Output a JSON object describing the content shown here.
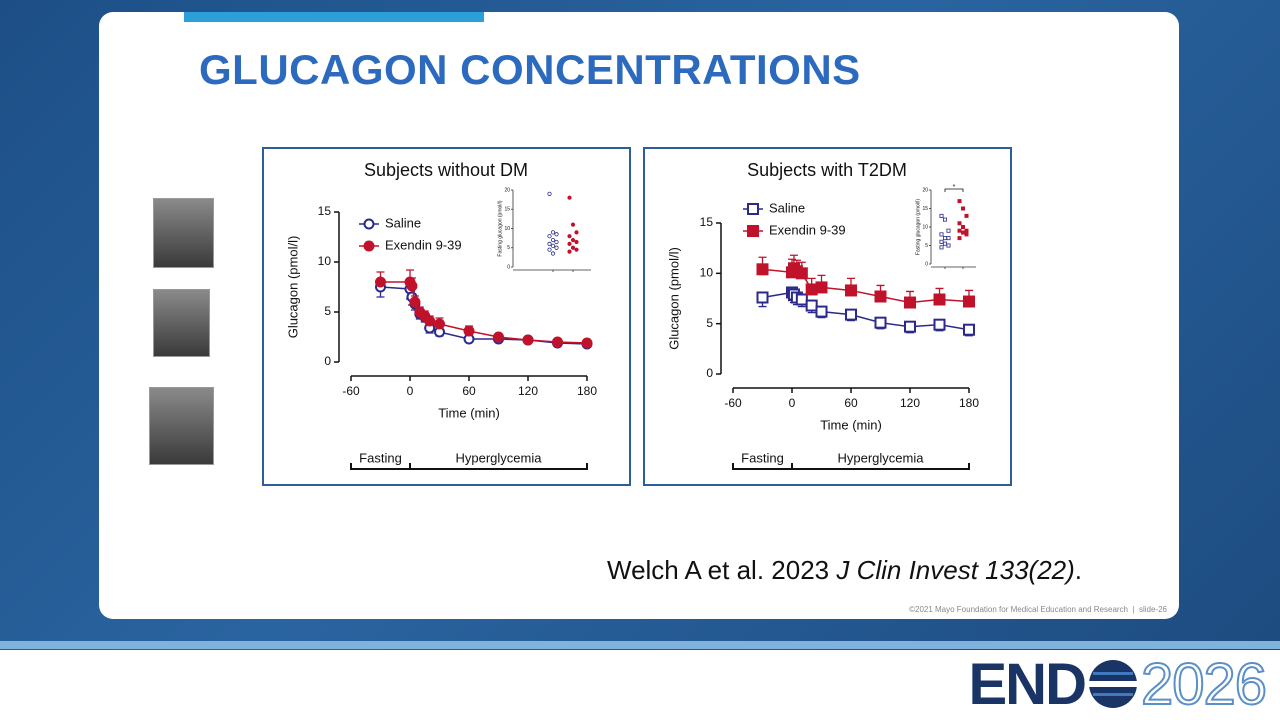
{
  "slide": {
    "title": "GLUCAGON CONCENTRATIONS",
    "citation": {
      "authors": "Welch A et al. 2023 ",
      "journal": "J Clin Invest 133(22)",
      "end": "."
    },
    "copyright": "©2021 Mayo Foundation for Medical Education and Research",
    "slide_number": "slide-26",
    "logo": {
      "name": "END",
      "year": "2026"
    }
  },
  "chart_data": [
    {
      "type": "line",
      "title": "Subjects without DM",
      "xlabel": "Time (min)",
      "ylabel": "Glucagon (pmol/l)",
      "marker": "circle",
      "x": [
        -30,
        0,
        2,
        5,
        10,
        15,
        20,
        30,
        60,
        90,
        120,
        150,
        180
      ],
      "series": [
        {
          "name": "Saline",
          "color": "#2b2a8c",
          "filled": false,
          "error_side": "down",
          "values": [
            7.5,
            7.3,
            6.5,
            5.8,
            4.8,
            4.5,
            3.4,
            3.0,
            2.3,
            2.3,
            2.2,
            1.9,
            1.8
          ],
          "errors": [
            1.0,
            1.0,
            0.8,
            0.6,
            0.5,
            0.5,
            0.5,
            0.4,
            0.3,
            0.3,
            0.3,
            0.2,
            0.2
          ]
        },
        {
          "name": "Exendin 9-39",
          "color": "#c0132b",
          "filled": true,
          "error_side": "up",
          "values": [
            8.0,
            8.0,
            7.6,
            6.0,
            5.0,
            4.6,
            4.1,
            3.8,
            3.1,
            2.5,
            2.2,
            2.0,
            1.9
          ],
          "errors": [
            1.0,
            1.2,
            0.8,
            0.6,
            0.5,
            0.5,
            0.5,
            0.6,
            0.5,
            0.3,
            0.3,
            0.2,
            0.2
          ]
        }
      ],
      "xlim": [
        -60,
        180
      ],
      "xticks": [
        -60,
        0,
        60,
        120,
        180
      ],
      "ylim": [
        0,
        15
      ],
      "yticks": [
        0,
        5,
        10,
        15
      ],
      "phases": [
        {
          "label": "Fasting",
          "start": -60,
          "end": 0
        },
        {
          "label": "Hyperglycemia",
          "start": 0,
          "end": 180
        }
      ],
      "inset": {
        "type": "scatter",
        "ylabel": "Fasting glucagon (pmol/l)",
        "ylim": [
          0,
          20
        ],
        "yticks": [
          0,
          5,
          10,
          15,
          20
        ],
        "series": [
          {
            "color": "#2b2a8c",
            "values": [
              19,
              9,
              8.5,
              8,
              7,
              6.5,
              6,
              5.5,
              5,
              4.5,
              3.5
            ]
          },
          {
            "color": "#c0132b",
            "values": [
              18,
              11,
              9,
              8,
              7,
              6.5,
              6,
              5,
              4.5,
              4
            ]
          }
        ]
      }
    },
    {
      "type": "line",
      "title": "Subjects with T2DM",
      "xlabel": "Time (min)",
      "ylabel": "Glucagon (pmol/l)",
      "marker": "square",
      "x": [
        -30,
        0,
        2,
        5,
        10,
        20,
        30,
        60,
        90,
        120,
        150,
        180
      ],
      "series": [
        {
          "name": "Saline",
          "color": "#2b2a8c",
          "filled": false,
          "error_side": "down",
          "values": [
            7.6,
            8.1,
            7.9,
            7.6,
            7.4,
            6.8,
            6.2,
            5.9,
            5.1,
            4.7,
            4.9,
            4.4
          ],
          "errors": [
            0.9,
            0.8,
            0.8,
            0.7,
            0.7,
            0.7,
            0.6,
            0.6,
            0.6,
            0.6,
            0.6,
            0.6
          ]
        },
        {
          "name": "Exendin 9-39",
          "color": "#c0132b",
          "filled": true,
          "error_side": "up",
          "values": [
            10.4,
            10.1,
            10.5,
            10.2,
            10.0,
            8.4,
            8.6,
            8.3,
            7.7,
            7.1,
            7.4,
            7.2
          ],
          "errors": [
            1.2,
            1.3,
            1.3,
            1.1,
            1.1,
            1.1,
            1.2,
            1.2,
            1.1,
            1.1,
            1.1,
            1.1
          ]
        }
      ],
      "xlim": [
        -60,
        180
      ],
      "xticks": [
        -60,
        0,
        60,
        120,
        180
      ],
      "ylim": [
        0,
        15
      ],
      "yticks": [
        0,
        5,
        10,
        15
      ],
      "phases": [
        {
          "label": "Fasting",
          "start": -60,
          "end": 0
        },
        {
          "label": "Hyperglycemia",
          "start": 0,
          "end": 180
        }
      ],
      "inset": {
        "type": "scatter",
        "ylabel": "Fasting glucagon (pmol/l)",
        "ylim": [
          0,
          20
        ],
        "yticks": [
          0,
          5,
          10,
          15,
          20
        ],
        "annotation": "*",
        "series": [
          {
            "color": "#2b2a8c",
            "values": [
              13,
              12,
              9,
              8,
              7,
              7,
              6,
              5.5,
              5,
              4.5
            ]
          },
          {
            "color": "#c0132b",
            "values": [
              17,
              15,
              13,
              11,
              10,
              9,
              9,
              8.5,
              8,
              7
            ]
          }
        ]
      }
    }
  ]
}
